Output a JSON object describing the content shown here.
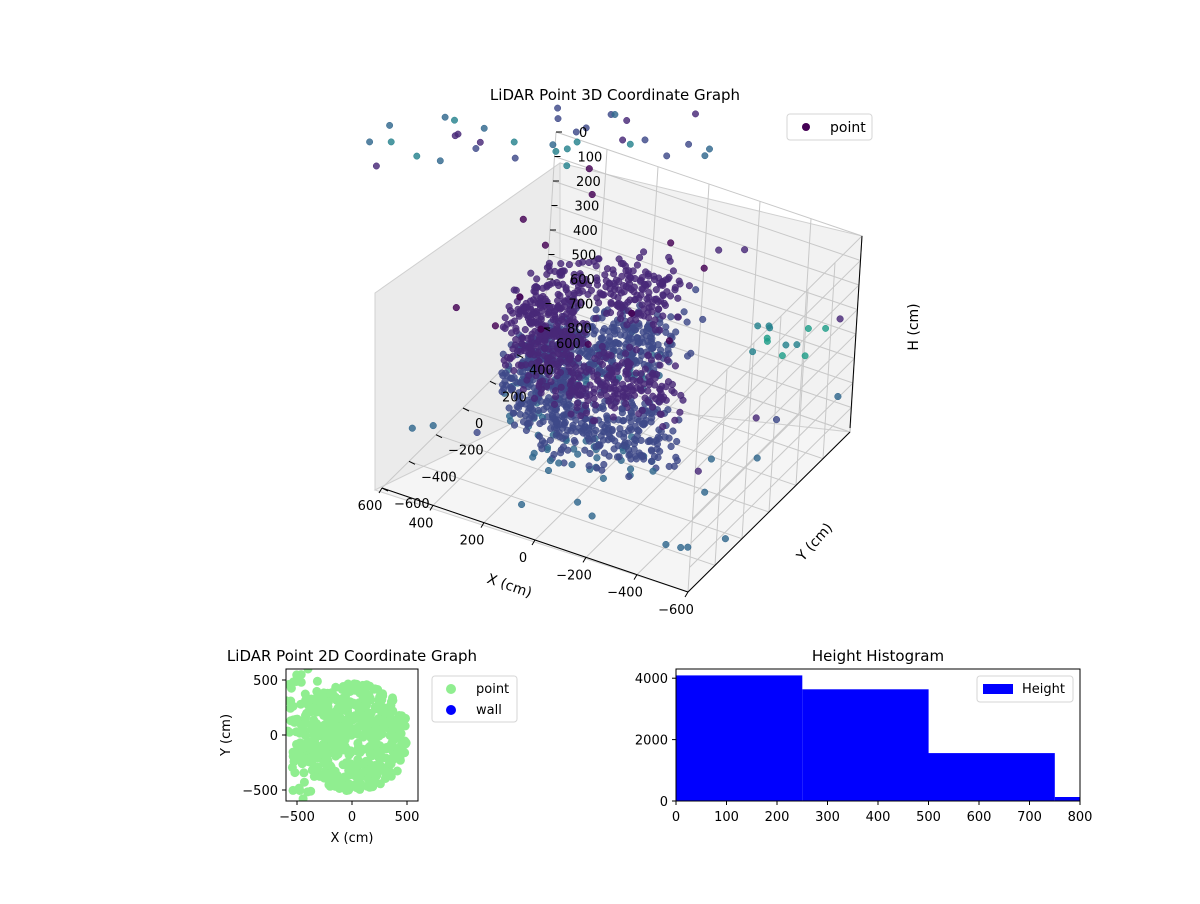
{
  "chart_data": [
    {
      "type": "scatter3d",
      "title": "LiDAR Point 3D Coordinate Graph",
      "xlabel": "X (cm)",
      "ylabel": "Y (cm)",
      "zlabel": "H (cm)",
      "xlim": [
        -600,
        600
      ],
      "ylim": [
        -600,
        600
      ],
      "zlim": [
        800,
        0
      ],
      "x_ticks": [
        "−600",
        "−400",
        "−200",
        "0",
        "200",
        "400",
        "600"
      ],
      "y_ticks": [
        "−600",
        "−400",
        "−200",
        "0",
        "200",
        "400",
        "600"
      ],
      "z_ticks": [
        "0",
        "100",
        "200",
        "300",
        "400",
        "500",
        "600",
        "700",
        "800"
      ],
      "legend": {
        "entries": [
          "point"
        ],
        "placement": "top-right"
      },
      "colormap": [
        "#440154",
        "#482878",
        "#3e4989",
        "#31688e",
        "#26828e",
        "#1f9e89",
        "#6ccd5a"
      ],
      "description": "Dense curved bands of points forming partial rings around the origin at heights of roughly 200–600 cm, with sparse outliers."
    },
    {
      "type": "scatter",
      "title": "LiDAR Point 2D Coordinate Graph",
      "xlabel": "X (cm)",
      "ylabel": "Y (cm)",
      "xlim": [
        -600,
        600
      ],
      "ylim": [
        -600,
        600
      ],
      "x_ticks": [
        "−500",
        "0",
        "500"
      ],
      "y_ticks": [
        "500",
        "0",
        "−500"
      ],
      "series": [
        {
          "name": "point",
          "color": "#90ee90"
        },
        {
          "name": "wall",
          "color": "#0000ff"
        }
      ],
      "legend": {
        "placement": "outside-right"
      }
    },
    {
      "type": "bar",
      "title": "Height Histogram",
      "xlim": [
        0,
        800
      ],
      "ylim": [
        0,
        4300
      ],
      "bins": [
        [
          0,
          250
        ],
        [
          250,
          500
        ],
        [
          500,
          750
        ],
        [
          750,
          800
        ]
      ],
      "values": [
        4090,
        3640,
        1560,
        130
      ],
      "x_ticks": [
        0,
        100,
        200,
        300,
        400,
        500,
        600,
        700,
        800
      ],
      "y_ticks": [
        0,
        2000,
        4000
      ],
      "series": [
        {
          "name": "Height",
          "color": "#0000ff"
        }
      ],
      "legend": {
        "placement": "top-right"
      }
    }
  ]
}
